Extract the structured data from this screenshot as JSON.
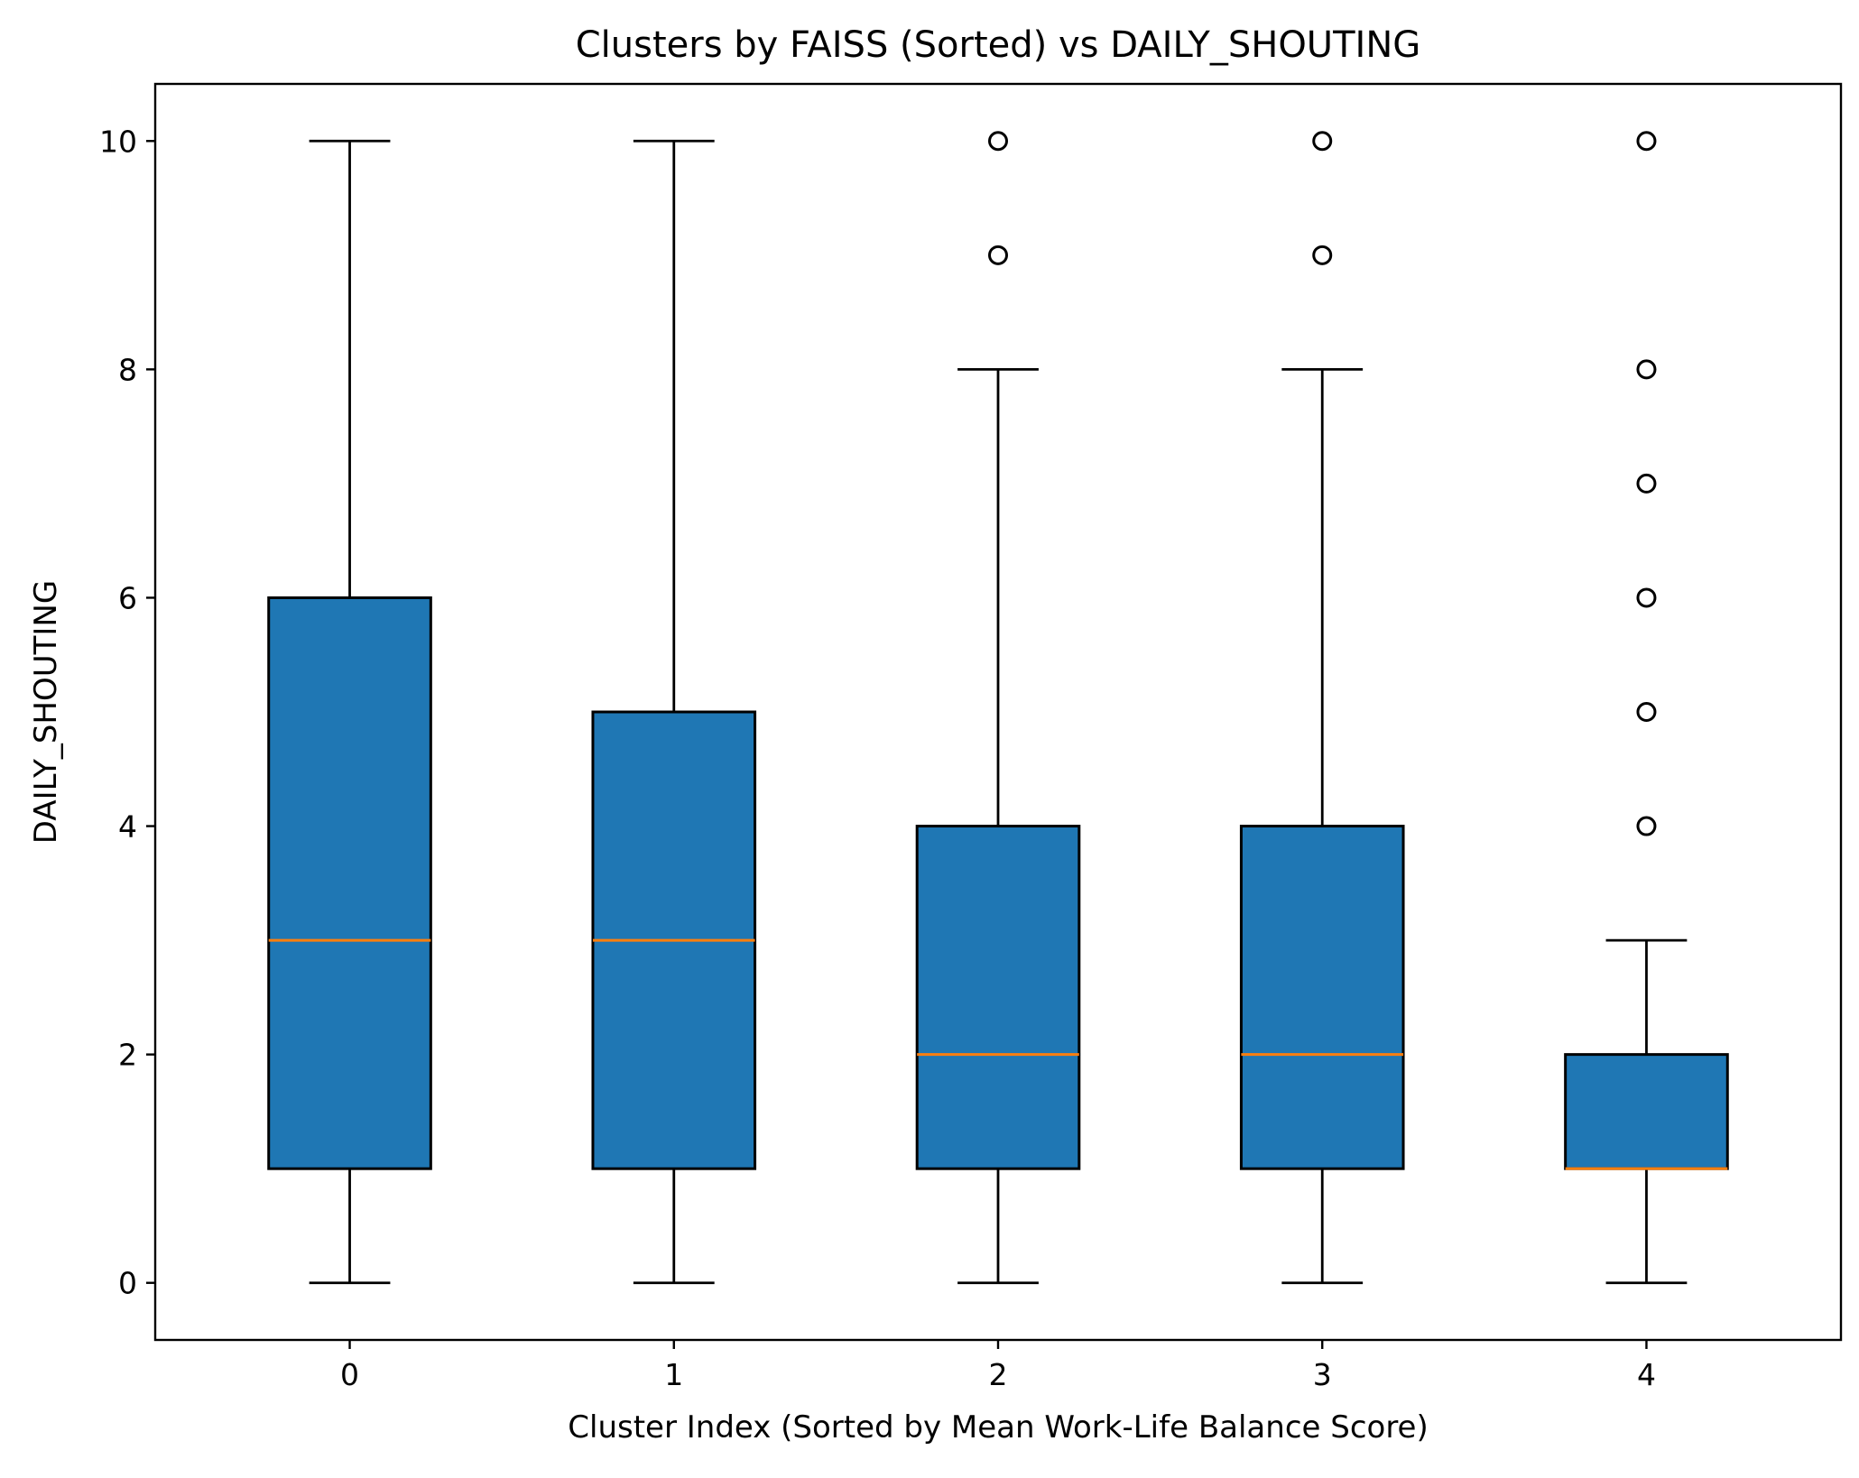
{
  "chart_data": {
    "type": "box",
    "title": "Clusters by FAISS (Sorted) vs DAILY_SHOUTING",
    "xlabel": "Cluster Index (Sorted by Mean Work-Life Balance Score)",
    "ylabel": "DAILY_SHOUTING",
    "ylim": [
      -0.5,
      10.5
    ],
    "yticks": [
      0,
      2,
      4,
      6,
      8,
      10
    ],
    "yticklabels": [
      "0",
      "2",
      "4",
      "6",
      "8",
      "10"
    ],
    "categories": [
      "0",
      "1",
      "2",
      "3",
      "4"
    ],
    "grid": false,
    "colors": {
      "box_fill": "#1f77b4",
      "median": "#ff7f0e",
      "edge": "#000000"
    },
    "boxes": [
      {
        "category": "0",
        "whisker_low": 0,
        "q1": 1,
        "median": 3,
        "q3": 6,
        "whisker_high": 10,
        "outliers": []
      },
      {
        "category": "1",
        "whisker_low": 0,
        "q1": 1,
        "median": 3,
        "q3": 5,
        "whisker_high": 10,
        "outliers": []
      },
      {
        "category": "2",
        "whisker_low": 0,
        "q1": 1,
        "median": 2,
        "q3": 4,
        "whisker_high": 8,
        "outliers": [
          9,
          10
        ]
      },
      {
        "category": "3",
        "whisker_low": 0,
        "q1": 1,
        "median": 2,
        "q3": 4,
        "whisker_high": 8,
        "outliers": [
          9,
          10
        ]
      },
      {
        "category": "4",
        "whisker_low": 0,
        "q1": 1,
        "median": 1,
        "q3": 2,
        "whisker_high": 3,
        "outliers": [
          4,
          5,
          6,
          7,
          8,
          10
        ]
      }
    ]
  }
}
